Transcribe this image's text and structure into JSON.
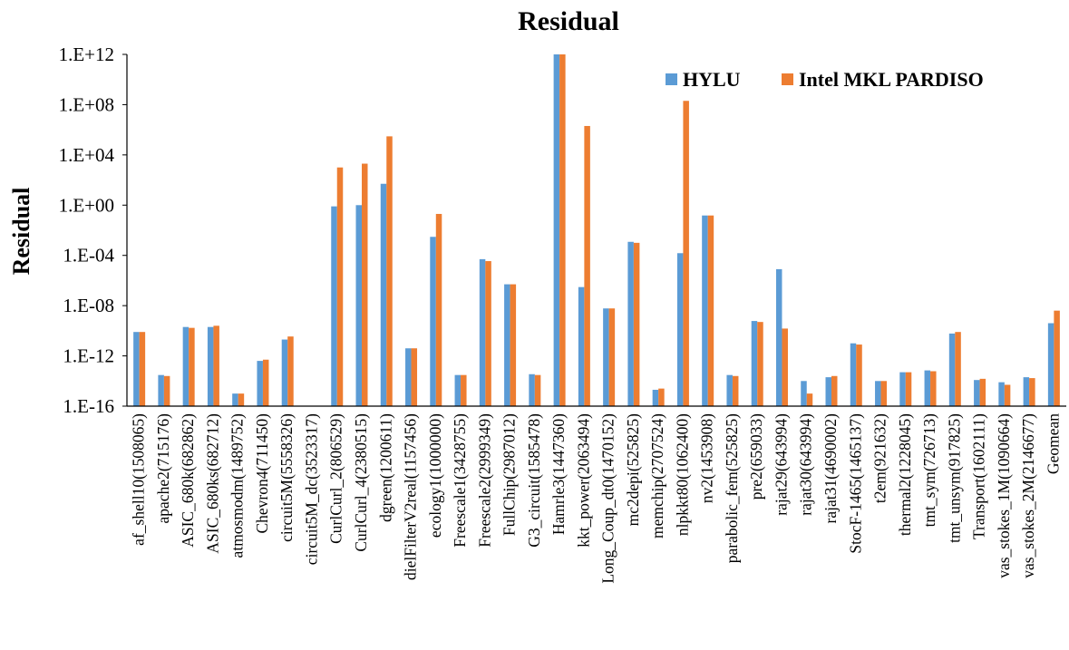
{
  "chart_data": {
    "type": "bar",
    "title": "Residual",
    "ylabel": "Residual",
    "xlabel": "",
    "yscale": "log10",
    "ylim": [
      1e-16,
      1000000000000.0
    ],
    "yticks": [
      "1.E-16",
      "1.E-12",
      "1.E-08",
      "1.E-04",
      "1.E+00",
      "1.E+04",
      "1.E+08",
      "1.E+12"
    ],
    "legend_position": "top-right",
    "grid": false,
    "categories": [
      "af_shell10(1508065)",
      "apache2(715176)",
      "ASIC_680k(682862)",
      "ASIC_680ks(682712)",
      "atmosmodm(1489752)",
      "Chevron4(711450)",
      "circuit5M(5558326)",
      "circuit5M_dc(3523317)",
      "CurlCurl_2(806529)",
      "CurlCurl_4(2380515)",
      "dgreen(1200611)",
      "dielFilterV2real(1157456)",
      "ecology1(1000000)",
      "Freescale1(3428755)",
      "Freescale2(2999349)",
      "FullChip(2987012)",
      "G3_circuit(1585478)",
      "Hamrle3(1447360)",
      "kkt_power(2063494)",
      "Long_Coup_dt0(1470152)",
      "mc2depi(525825)",
      "memchip(2707524)",
      "nlpkkt80(1062400)",
      "nv2(1453908)",
      "parabolic_fem(525825)",
      "pre2(659033)",
      "rajat29(643994)",
      "rajat30(643994)",
      "rajat31(4690002)",
      "StocF-1465(1465137)",
      "t2em(921632)",
      "thermal2(1228045)",
      "tmt_sym(726713)",
      "tmt_unsym(917825)",
      "Transport(1602111)",
      "vas_stokes_1M(1090664)",
      "vas_stokes_2M(2146677)",
      "Geomean"
    ],
    "series": [
      {
        "name": "HYLU",
        "color": "#5b9bd5",
        "values": [
          8e-11,
          3e-14,
          2e-10,
          2e-10,
          1e-15,
          4e-13,
          2e-11,
          1e-16,
          0.8,
          1,
          50,
          4e-12,
          0.003,
          3e-14,
          5e-05,
          5e-07,
          3.5e-14,
          1000000000000.0,
          3e-07,
          6e-09,
          0.0012,
          2e-15,
          0.00015,
          0.15,
          3e-14,
          6e-10,
          8e-06,
          1e-14,
          2e-14,
          1e-11,
          1e-14,
          5e-14,
          7e-14,
          6e-11,
          1.2e-14,
          8e-15,
          2e-14,
          4e-10
        ]
      },
      {
        "name": "Intel MKL PARDISO",
        "color": "#ed7d31",
        "values": [
          8e-11,
          2.5e-14,
          1.7e-10,
          2.5e-10,
          1e-15,
          5e-13,
          3.5e-11,
          1e-16,
          1000,
          2000,
          300000.0,
          4e-12,
          0.2,
          3e-14,
          3.5e-05,
          5e-07,
          3e-14,
          1000000000000.0,
          2000000.0,
          6e-09,
          0.001,
          2.5e-15,
          200000000.0,
          0.15,
          2.5e-14,
          5e-10,
          1.5e-10,
          1e-15,
          2.5e-14,
          8e-12,
          1e-14,
          5e-14,
          6e-14,
          8e-11,
          1.5e-14,
          5e-15,
          1.7e-14,
          4e-09
        ]
      }
    ]
  }
}
